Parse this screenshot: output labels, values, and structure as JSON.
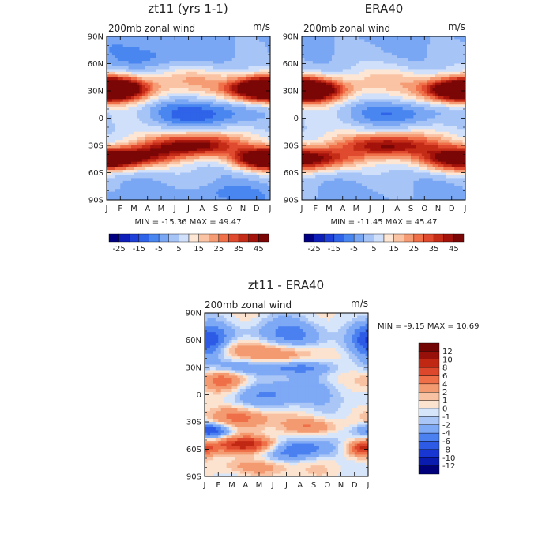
{
  "chart_data": [
    {
      "type": "heatmap",
      "id": "model",
      "title": "zt11 (yrs 1-1)",
      "subtitle": "200mb zonal wind",
      "units": "m/s",
      "x_ticks": [
        "J",
        "F",
        "M",
        "A",
        "M",
        "J",
        "J",
        "A",
        "S",
        "O",
        "N",
        "D",
        "J"
      ],
      "y_ticks": [
        "90N",
        "60N",
        "30N",
        "0",
        "30S",
        "60S",
        "90S"
      ],
      "xlim": [
        0,
        12
      ],
      "ylim": [
        -90,
        90
      ],
      "stats": "MIN = -15.36 MAX =  49.47",
      "min": -15.36,
      "max": 49.47,
      "colorbar_labels": [
        "-25",
        "-15",
        "-5",
        "5",
        "15",
        "25",
        "35",
        "45"
      ],
      "levels": [
        -30,
        -25,
        -20,
        -15,
        -10,
        -5,
        0,
        5,
        10,
        15,
        20,
        25,
        30,
        35,
        40,
        45,
        50
      ],
      "features": [
        {
          "lat": 32,
          "month": 0.6,
          "amp": 48,
          "dlat": 9,
          "dmon": 1.9
        },
        {
          "lat": 32,
          "month": 11.4,
          "amp": 44,
          "dlat": 9,
          "dmon": 1.9
        },
        {
          "lat": 42,
          "month": 6.5,
          "amp": 14,
          "dlat": 10,
          "dmon": 2.2
        },
        {
          "lat": -30,
          "month": 6.6,
          "amp": 46,
          "dlat": 9,
          "dmon": 2.3
        },
        {
          "lat": -45,
          "month": 0.5,
          "amp": 38,
          "dlat": 8,
          "dmon": 1.8
        },
        {
          "lat": -45,
          "month": 11.5,
          "amp": 36,
          "dlat": 8,
          "dmon": 1.6
        },
        {
          "lat": -40,
          "month": 3.2,
          "amp": 22,
          "dlat": 9,
          "dmon": 1.6
        },
        {
          "lat": 5,
          "month": 7.0,
          "amp": -20,
          "dlat": 11,
          "dmon": 2.6
        },
        {
          "lat": 68,
          "month": 3.5,
          "amp": -8,
          "dlat": 10,
          "dmon": 2.5
        },
        {
          "lat": -82,
          "month": 9.0,
          "amp": -6,
          "dlat": 6,
          "dmon": 2.0
        }
      ]
    },
    {
      "type": "heatmap",
      "id": "era40",
      "title": "ERA40",
      "subtitle": "200mb zonal wind",
      "units": "m/s",
      "x_ticks": [
        "J",
        "F",
        "M",
        "A",
        "M",
        "J",
        "J",
        "A",
        "S",
        "O",
        "N",
        "D",
        "J"
      ],
      "y_ticks": [
        "90N",
        "60N",
        "30N",
        "0",
        "30S",
        "60S",
        "90S"
      ],
      "xlim": [
        0,
        12
      ],
      "ylim": [
        -90,
        90
      ],
      "stats": "MIN = -11.45 MAX =  45.47",
      "min": -11.45,
      "max": 45.47,
      "colorbar_labels": [
        "-25",
        "-15",
        "-5",
        "5",
        "15",
        "25",
        "35",
        "45"
      ],
      "levels": [
        -30,
        -25,
        -20,
        -15,
        -10,
        -5,
        0,
        5,
        10,
        15,
        20,
        25,
        30,
        35,
        40,
        45,
        50
      ],
      "features": [
        {
          "lat": 31,
          "month": 0.6,
          "amp": 44,
          "dlat": 9,
          "dmon": 1.9
        },
        {
          "lat": 31,
          "month": 11.4,
          "amp": 42,
          "dlat": 9,
          "dmon": 1.9
        },
        {
          "lat": 42,
          "month": 6.5,
          "amp": 12,
          "dlat": 10,
          "dmon": 2.2
        },
        {
          "lat": -30,
          "month": 6.5,
          "amp": 42,
          "dlat": 9,
          "dmon": 2.5
        },
        {
          "lat": -45,
          "month": 1.0,
          "amp": 30,
          "dlat": 9,
          "dmon": 2.2
        },
        {
          "lat": -45,
          "month": 11.0,
          "amp": 30,
          "dlat": 9,
          "dmon": 2.0
        },
        {
          "lat": 5,
          "month": 7.0,
          "amp": -16,
          "dlat": 10,
          "dmon": 2.4
        }
      ]
    },
    {
      "type": "heatmap",
      "id": "diff",
      "title": "zt11 - ERA40",
      "subtitle": "200mb zonal wind",
      "units": "m/s",
      "x_ticks": [
        "J",
        "F",
        "M",
        "A",
        "M",
        "J",
        "J",
        "A",
        "S",
        "O",
        "N",
        "D",
        "J"
      ],
      "y_ticks": [
        "90N",
        "60N",
        "30N",
        "0",
        "30S",
        "60S",
        "90S"
      ],
      "xlim": [
        0,
        12
      ],
      "ylim": [
        -90,
        90
      ],
      "stats": "MIN =  -9.15 MAX =  10.69",
      "min": -9.15,
      "max": 10.69,
      "colorbar_labels": [
        "12",
        "10",
        "8",
        "6",
        "4",
        "2",
        "1",
        "0",
        "-1",
        "-2",
        "-4",
        "-6",
        "-8",
        "-10",
        "-12"
      ],
      "levels": [
        -14,
        -12,
        -10,
        -8,
        -6,
        -4,
        -2,
        -1,
        0,
        1,
        2,
        4,
        6,
        8,
        10,
        12,
        14
      ],
      "features": [
        {
          "lat": 60,
          "month": 0.3,
          "amp": -8,
          "dlat": 14,
          "dmon": 1.0
        },
        {
          "lat": 65,
          "month": 6.5,
          "amp": -5,
          "dlat": 12,
          "dmon": 2.0
        },
        {
          "lat": 50,
          "month": 2.5,
          "amp": 4,
          "dlat": 8,
          "dmon": 1.2
        },
        {
          "lat": 45,
          "month": 6.0,
          "amp": 4,
          "dlat": 8,
          "dmon": 2.0
        },
        {
          "lat": 30,
          "month": 5.0,
          "amp": -5,
          "dlat": 6,
          "dmon": 3.0
        },
        {
          "lat": 15,
          "month": 1.5,
          "amp": 5,
          "dlat": 8,
          "dmon": 1.2
        },
        {
          "lat": 0,
          "month": 6.0,
          "amp": -4,
          "dlat": 12,
          "dmon": 3.0
        },
        {
          "lat": -25,
          "month": 2.5,
          "amp": 5,
          "dlat": 8,
          "dmon": 1.8
        },
        {
          "lat": -35,
          "month": 8.0,
          "amp": 4,
          "dlat": 6,
          "dmon": 1.5
        },
        {
          "lat": -40,
          "month": 0.5,
          "amp": -7,
          "dlat": 6,
          "dmon": 1.0
        },
        {
          "lat": -55,
          "month": 3.0,
          "amp": 9,
          "dlat": 6,
          "dmon": 1.8
        },
        {
          "lat": -60,
          "month": 7.0,
          "amp": -6,
          "dlat": 8,
          "dmon": 1.8
        },
        {
          "lat": -60,
          "month": 11.6,
          "amp": 7,
          "dlat": 6,
          "dmon": 0.8
        },
        {
          "lat": -80,
          "month": 4.0,
          "amp": 3,
          "dlat": 6,
          "dmon": 2.0
        }
      ]
    }
  ],
  "colors": {
    "full_palette": [
      "#000080",
      "#0d1fb8",
      "#1f3fd9",
      "#2f63e8",
      "#4a86f0",
      "#7aa7f4",
      "#a7c4f7",
      "#d0e0fa",
      "#fde6d4",
      "#f9c3a4",
      "#f59c74",
      "#f0704a",
      "#e04a2e",
      "#c42c17",
      "#a3130b",
      "#7b0606"
    ],
    "diff_palette": [
      "#00007a",
      "#0a1bb0",
      "#1736d2",
      "#2d5be6",
      "#4a80ef",
      "#7ea9f5",
      "#aac6f7",
      "#d6e5fa",
      "#fbe3d0",
      "#f8c2a2",
      "#f49a71",
      "#ee6f48",
      "#dd472b",
      "#c02814",
      "#98100a",
      "#720404"
    ]
  }
}
